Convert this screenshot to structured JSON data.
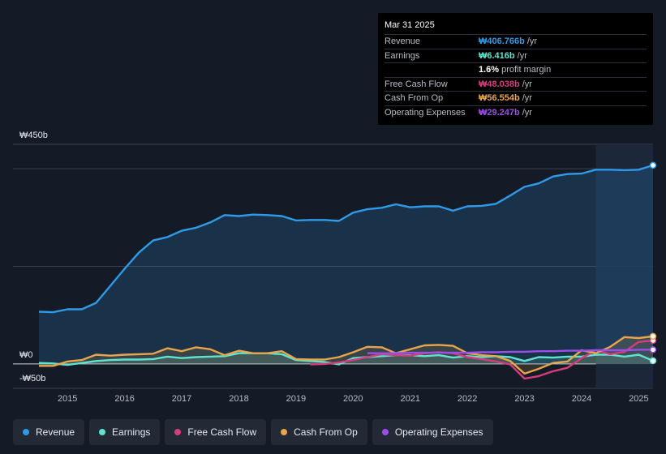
{
  "chart_data": {
    "type": "line",
    "y_axis": {
      "top_label": "₩450b",
      "zero_label": "₩0",
      "bottom_label": "-₩50b",
      "ylim": [
        -50,
        450
      ],
      "gridlines": [
        -50,
        0,
        200,
        400,
        450
      ]
    },
    "x_axis": {
      "tick_labels": [
        "2015",
        "2016",
        "2017",
        "2018",
        "2019",
        "2020",
        "2021",
        "2022",
        "2023",
        "2024",
        "2025"
      ],
      "tick_values": [
        2015,
        2016,
        2017,
        2018,
        2019,
        2020,
        2021,
        2022,
        2023,
        2024,
        2025
      ],
      "xlim": [
        2014.5,
        2025.25
      ]
    },
    "forecast_region_start": 2024.25,
    "series": [
      {
        "name": "Revenue",
        "color": "#2f9ae8",
        "fill": true,
        "points": [
          [
            2014.5,
            107
          ],
          [
            2014.75,
            106
          ],
          [
            2015.0,
            112
          ],
          [
            2015.25,
            112
          ],
          [
            2015.5,
            125
          ],
          [
            2015.75,
            160
          ],
          [
            2016.0,
            195
          ],
          [
            2016.25,
            228
          ],
          [
            2016.5,
            253
          ],
          [
            2016.75,
            260
          ],
          [
            2017.0,
            273
          ],
          [
            2017.25,
            279
          ],
          [
            2017.5,
            290
          ],
          [
            2017.75,
            305
          ],
          [
            2018.0,
            303
          ],
          [
            2018.25,
            306
          ],
          [
            2018.5,
            305
          ],
          [
            2018.75,
            303
          ],
          [
            2019.0,
            294
          ],
          [
            2019.25,
            295
          ],
          [
            2019.5,
            295
          ],
          [
            2019.75,
            293
          ],
          [
            2020.0,
            310
          ],
          [
            2020.25,
            317
          ],
          [
            2020.5,
            320
          ],
          [
            2020.75,
            327
          ],
          [
            2021.0,
            321
          ],
          [
            2021.25,
            323
          ],
          [
            2021.5,
            323
          ],
          [
            2021.75,
            314
          ],
          [
            2022.0,
            323
          ],
          [
            2022.25,
            324
          ],
          [
            2022.5,
            328
          ],
          [
            2022.75,
            345
          ],
          [
            2023.0,
            363
          ],
          [
            2023.25,
            370
          ],
          [
            2023.5,
            384
          ],
          [
            2023.75,
            389
          ],
          [
            2024.0,
            390
          ],
          [
            2024.25,
            398
          ],
          [
            2024.5,
            398
          ],
          [
            2024.75,
            397
          ],
          [
            2025.0,
            398
          ],
          [
            2025.25,
            407
          ]
        ]
      },
      {
        "name": "Earnings",
        "color": "#5fe3cf",
        "fill": true,
        "points": [
          [
            2014.5,
            2
          ],
          [
            2014.75,
            1
          ],
          [
            2015.0,
            -2
          ],
          [
            2015.25,
            2
          ],
          [
            2015.5,
            6
          ],
          [
            2015.75,
            8
          ],
          [
            2016.0,
            9
          ],
          [
            2016.25,
            9
          ],
          [
            2016.5,
            10
          ],
          [
            2016.75,
            15
          ],
          [
            2017.0,
            12
          ],
          [
            2017.25,
            14
          ],
          [
            2017.5,
            15
          ],
          [
            2017.75,
            16
          ],
          [
            2018.0,
            22
          ],
          [
            2018.25,
            22
          ],
          [
            2018.5,
            22
          ],
          [
            2018.75,
            20
          ],
          [
            2019.0,
            8
          ],
          [
            2019.25,
            6
          ],
          [
            2019.5,
            4
          ],
          [
            2019.75,
            -1
          ],
          [
            2020.0,
            12
          ],
          [
            2020.25,
            14
          ],
          [
            2020.5,
            16
          ],
          [
            2020.75,
            18
          ],
          [
            2021.0,
            18
          ],
          [
            2021.25,
            16
          ],
          [
            2021.5,
            18
          ],
          [
            2021.75,
            13
          ],
          [
            2022.0,
            16
          ],
          [
            2022.25,
            14
          ],
          [
            2022.5,
            16
          ],
          [
            2022.75,
            14
          ],
          [
            2023.0,
            6
          ],
          [
            2023.25,
            14
          ],
          [
            2023.5,
            13
          ],
          [
            2023.75,
            15
          ],
          [
            2024.0,
            15
          ],
          [
            2024.25,
            19
          ],
          [
            2024.5,
            19
          ],
          [
            2024.75,
            15
          ],
          [
            2025.0,
            19
          ],
          [
            2025.25,
            6.4
          ]
        ]
      },
      {
        "name": "Free Cash Flow",
        "color": "#d63b7c",
        "fill": false,
        "points": [
          [
            2019.25,
            -1
          ],
          [
            2019.5,
            0
          ],
          [
            2019.75,
            3
          ],
          [
            2020.0,
            8
          ],
          [
            2020.25,
            14
          ],
          [
            2020.5,
            20
          ],
          [
            2020.75,
            18
          ],
          [
            2021.0,
            17
          ],
          [
            2021.25,
            22
          ],
          [
            2021.5,
            24
          ],
          [
            2021.75,
            22
          ],
          [
            2022.0,
            14
          ],
          [
            2022.25,
            10
          ],
          [
            2022.5,
            5
          ],
          [
            2022.75,
            -1
          ],
          [
            2023.0,
            -30
          ],
          [
            2023.25,
            -25
          ],
          [
            2023.5,
            -15
          ],
          [
            2023.75,
            -8
          ],
          [
            2024.0,
            12
          ],
          [
            2024.25,
            28
          ],
          [
            2024.5,
            20
          ],
          [
            2024.75,
            25
          ],
          [
            2025.0,
            45
          ],
          [
            2025.25,
            48
          ]
        ]
      },
      {
        "name": "Cash From Op",
        "color": "#e8a54c",
        "fill": true,
        "points": [
          [
            2014.5,
            -4
          ],
          [
            2014.75,
            -4
          ],
          [
            2015.0,
            5
          ],
          [
            2015.25,
            8
          ],
          [
            2015.5,
            19
          ],
          [
            2015.75,
            17
          ],
          [
            2016.0,
            19
          ],
          [
            2016.25,
            20
          ],
          [
            2016.5,
            21
          ],
          [
            2016.75,
            32
          ],
          [
            2017.0,
            26
          ],
          [
            2017.25,
            34
          ],
          [
            2017.5,
            30
          ],
          [
            2017.75,
            18
          ],
          [
            2018.0,
            27
          ],
          [
            2018.25,
            22
          ],
          [
            2018.5,
            22
          ],
          [
            2018.75,
            26
          ],
          [
            2019.0,
            10
          ],
          [
            2019.25,
            9
          ],
          [
            2019.5,
            9
          ],
          [
            2019.75,
            14
          ],
          [
            2020.0,
            24
          ],
          [
            2020.25,
            35
          ],
          [
            2020.5,
            34
          ],
          [
            2020.75,
            22
          ],
          [
            2021.0,
            30
          ],
          [
            2021.25,
            38
          ],
          [
            2021.5,
            39
          ],
          [
            2021.75,
            37
          ],
          [
            2022.0,
            22
          ],
          [
            2022.25,
            18
          ],
          [
            2022.5,
            16
          ],
          [
            2022.75,
            6
          ],
          [
            2023.0,
            -20
          ],
          [
            2023.25,
            -10
          ],
          [
            2023.5,
            2
          ],
          [
            2023.75,
            5
          ],
          [
            2024.0,
            28
          ],
          [
            2024.25,
            22
          ],
          [
            2024.5,
            35
          ],
          [
            2024.75,
            55
          ],
          [
            2025.0,
            53
          ],
          [
            2025.25,
            56.6
          ]
        ]
      },
      {
        "name": "Operating Expenses",
        "color": "#9b4fe8",
        "fill": false,
        "points": [
          [
            2020.25,
            22
          ],
          [
            2020.5,
            22
          ],
          [
            2020.75,
            22
          ],
          [
            2021.0,
            23
          ],
          [
            2021.25,
            23
          ],
          [
            2021.5,
            23
          ],
          [
            2021.75,
            23
          ],
          [
            2022.0,
            23
          ],
          [
            2022.25,
            24
          ],
          [
            2022.5,
            24
          ],
          [
            2022.75,
            25
          ],
          [
            2023.0,
            25
          ],
          [
            2023.25,
            26
          ],
          [
            2023.5,
            26
          ],
          [
            2023.75,
            27
          ],
          [
            2024.0,
            27
          ],
          [
            2024.25,
            28
          ],
          [
            2024.5,
            28
          ],
          [
            2024.75,
            28
          ],
          [
            2025.0,
            29
          ],
          [
            2025.25,
            29.2
          ]
        ]
      }
    ]
  },
  "tooltip": {
    "date": "Mar 31 2025",
    "rows": [
      {
        "label": "Revenue",
        "value": "₩406.766b",
        "unit": "/yr",
        "color": "#2f9ae8"
      },
      {
        "label": "Earnings",
        "value": "₩6.416b",
        "unit": "/yr",
        "color": "#5fe3cf"
      },
      {
        "label": "",
        "value": "1.6%",
        "unit": "profit margin",
        "color": "#ffffff"
      },
      {
        "label": "Free Cash Flow",
        "value": "₩48.038b",
        "unit": "/yr",
        "color": "#d63b7c"
      },
      {
        "label": "Cash From Op",
        "value": "₩56.554b",
        "unit": "/yr",
        "color": "#e8a54c"
      },
      {
        "label": "Operating Expenses",
        "value": "₩29.247b",
        "unit": "/yr",
        "color": "#9b4fe8"
      }
    ]
  },
  "legend": [
    {
      "label": "Revenue",
      "color": "#2f9ae8"
    },
    {
      "label": "Earnings",
      "color": "#5fe3cf"
    },
    {
      "label": "Free Cash Flow",
      "color": "#d63b7c"
    },
    {
      "label": "Cash From Op",
      "color": "#e8a54c"
    },
    {
      "label": "Operating Expenses",
      "color": "#9b4fe8"
    }
  ]
}
